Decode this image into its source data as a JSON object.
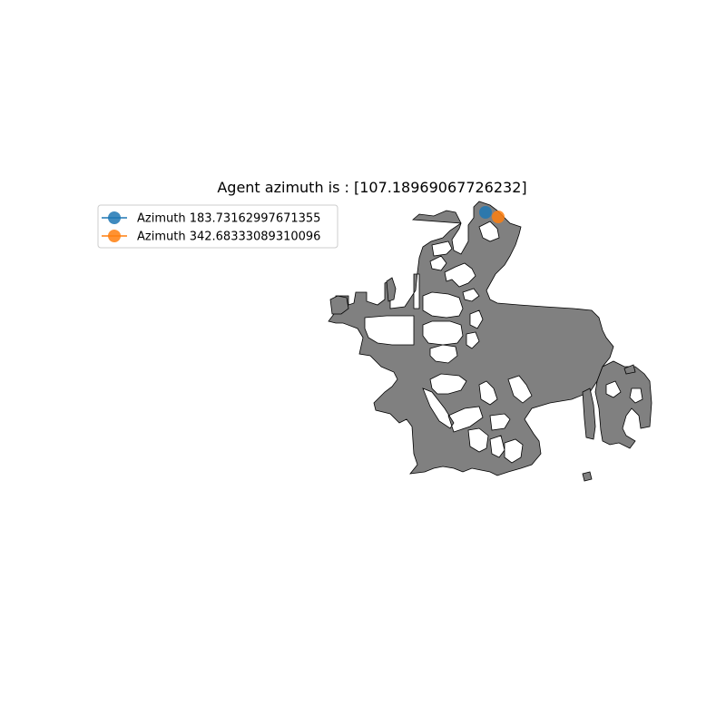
{
  "title": "Agent azimuth is : [107.18969067726232]",
  "colors": {
    "background": "#ffffff",
    "navigable_area": "#808080",
    "obstacle_outline": "#000000",
    "legend_border": "#cccccc"
  },
  "legend": {
    "placement": "upper-left",
    "entries": [
      {
        "label": "Azimuth 183.73162997671355",
        "color": "#1f77b4"
      },
      {
        "label": "Azimuth 342.68333089310096",
        "color": "#ff7f0e"
      }
    ]
  },
  "markers": [
    {
      "name": "agent-position-azimuth-183",
      "color": "#1f77b4"
    },
    {
      "name": "agent-position-azimuth-342",
      "color": "#ff7f0e"
    }
  ]
}
